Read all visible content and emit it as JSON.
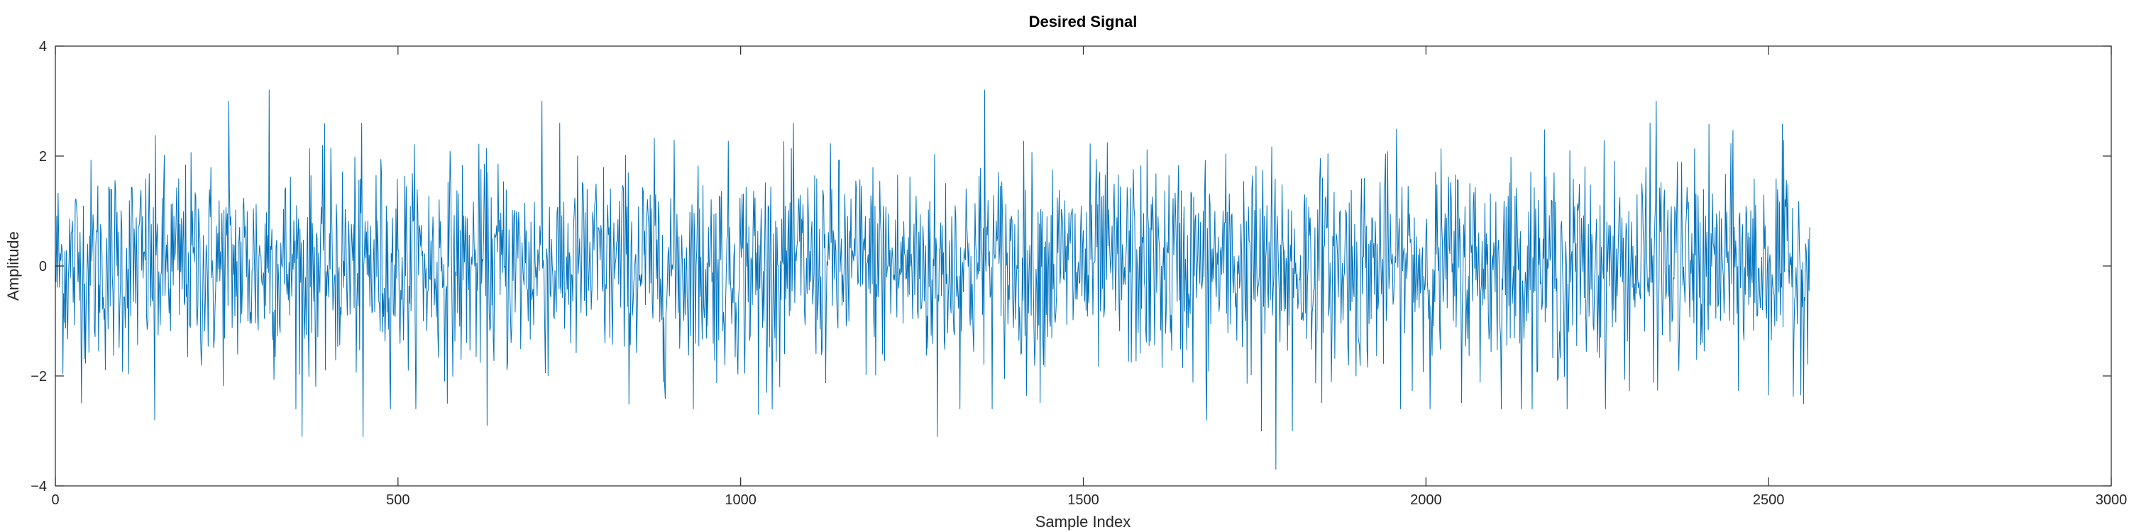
{
  "chart_data": {
    "type": "line",
    "title": "Desired Signal",
    "xlabel": "Sample Index",
    "ylabel": "Amplitude",
    "xlim": [
      0,
      3000
    ],
    "ylim": [
      -4,
      4
    ],
    "xticks": [
      0,
      500,
      1000,
      1500,
      2000,
      2500,
      3000
    ],
    "yticks": [
      -4,
      -2,
      0,
      2,
      4
    ],
    "xtick_labels": [
      "0",
      "500",
      "1000",
      "1500",
      "2000",
      "2500",
      "3000"
    ],
    "ytick_labels": [
      "−4",
      "−2",
      "0",
      "2",
      "4"
    ],
    "grid": false,
    "legend": "none",
    "series": [
      {
        "color": "#0072BD",
        "x_start": 1,
        "x_end": 2560,
        "sample_count": 2560,
        "distribution": "approximately standard normal noise, mean 0, std 1",
        "marked_points": [
          {
            "x": 145,
            "y": -2.8
          },
          {
            "x": 253,
            "y": 3.0
          },
          {
            "x": 312,
            "y": 3.2
          },
          {
            "x": 360,
            "y": -3.1
          },
          {
            "x": 449,
            "y": -3.1
          },
          {
            "x": 630,
            "y": -2.9
          },
          {
            "x": 710,
            "y": 3.0
          },
          {
            "x": 1026,
            "y": -2.7
          },
          {
            "x": 1287,
            "y": -3.1
          },
          {
            "x": 1356,
            "y": 3.2
          },
          {
            "x": 1680,
            "y": -2.8
          },
          {
            "x": 1760,
            "y": -3.0
          },
          {
            "x": 1781,
            "y": -3.7
          },
          {
            "x": 1805,
            "y": -3.0
          },
          {
            "x": 2206,
            "y": -2.6
          },
          {
            "x": 2336,
            "y": 3.0
          }
        ]
      }
    ]
  }
}
